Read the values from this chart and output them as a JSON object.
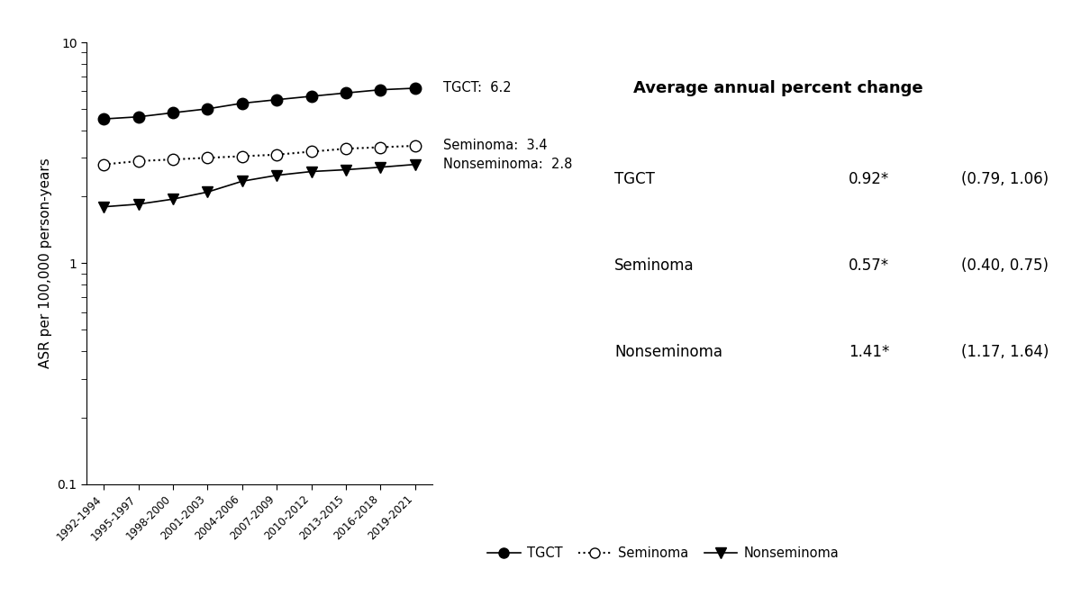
{
  "x_labels": [
    "1992-1994",
    "1995-1997",
    "1998-2000",
    "2001-2003",
    "2004-2006",
    "2007-2009",
    "2010-2012",
    "2013-2015",
    "2016-2018",
    "2019-2021"
  ],
  "tgct": [
    4.5,
    4.6,
    4.8,
    5.0,
    5.3,
    5.5,
    5.7,
    5.9,
    6.1,
    6.2
  ],
  "seminoma": [
    2.8,
    2.9,
    2.95,
    3.0,
    3.05,
    3.1,
    3.2,
    3.3,
    3.35,
    3.4
  ],
  "nonseminoma": [
    1.8,
    1.85,
    1.95,
    2.1,
    2.35,
    2.5,
    2.6,
    2.65,
    2.72,
    2.8
  ],
  "ylabel": "ASR per 100,000 person-years",
  "ylim_log": [
    0.1,
    10
  ],
  "yticks": [
    0.1,
    1,
    10
  ],
  "table_title": "Average annual percent change",
  "table_rows": [
    [
      "TGCT",
      "0.92*",
      "(0.79, 1.06)"
    ],
    [
      "Seminoma",
      "0.57*",
      "(0.40, 0.75)"
    ],
    [
      "Nonseminoma",
      "1.41*",
      "(1.17, 1.64)"
    ]
  ]
}
